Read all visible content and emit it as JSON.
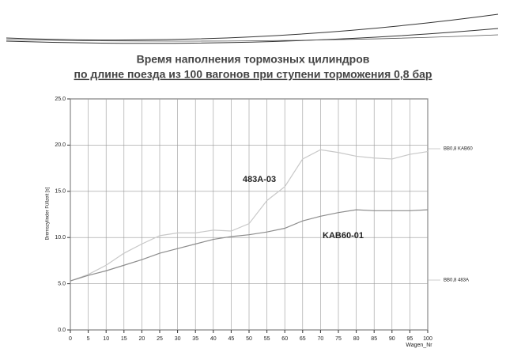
{
  "chart_data": {
    "type": "line",
    "title": "Время наполнения тормозных цилиндров",
    "subtitle": "по длине поезда из 100 вагонов при ступени торможения 0,8 бар",
    "x_label": "Wagen_Nr",
    "y_label": "Bremszylinder Füllzeit [s]",
    "x": [
      0,
      5,
      10,
      15,
      20,
      25,
      30,
      35,
      40,
      45,
      50,
      55,
      60,
      65,
      70,
      75,
      80,
      85,
      90,
      95,
      100
    ],
    "series": [
      {
        "name": "483A-03",
        "color": "#c8c8c8",
        "values": [
          5.3,
          6.0,
          7.0,
          8.3,
          9.3,
          10.2,
          10.5,
          10.5,
          10.8,
          10.7,
          11.5,
          14.0,
          15.5,
          18.5,
          19.5,
          19.2,
          18.8,
          18.6,
          18.5,
          19.0,
          19.3
        ]
      },
      {
        "name": "KAB60-01",
        "color": "#8c8c8c",
        "values": [
          5.3,
          5.9,
          6.4,
          7.0,
          7.6,
          8.3,
          8.8,
          9.3,
          9.8,
          10.1,
          10.3,
          10.6,
          11.0,
          11.8,
          12.3,
          12.7,
          13.0,
          12.9,
          12.9,
          12.9,
          13.0
        ]
      }
    ],
    "side_labels": [
      "BB0,8 KAB60",
      "BB0,8 483A"
    ],
    "xlim": [
      0,
      100
    ],
    "ylim": [
      0,
      25
    ],
    "xticks": [
      0,
      5,
      10,
      15,
      20,
      25,
      30,
      35,
      40,
      45,
      50,
      55,
      60,
      65,
      70,
      75,
      80,
      85,
      90,
      95,
      100
    ],
    "yticks": [
      {
        "value": 0,
        "label": "0.0"
      },
      {
        "value": 5,
        "label": "5.0"
      },
      {
        "value": 10,
        "label": "10.0"
      },
      {
        "value": 15,
        "label": "15.0"
      },
      {
        "value": 20,
        "label": "20.0"
      },
      {
        "value": 25,
        "label": "25.0"
      }
    ],
    "grid": true
  }
}
